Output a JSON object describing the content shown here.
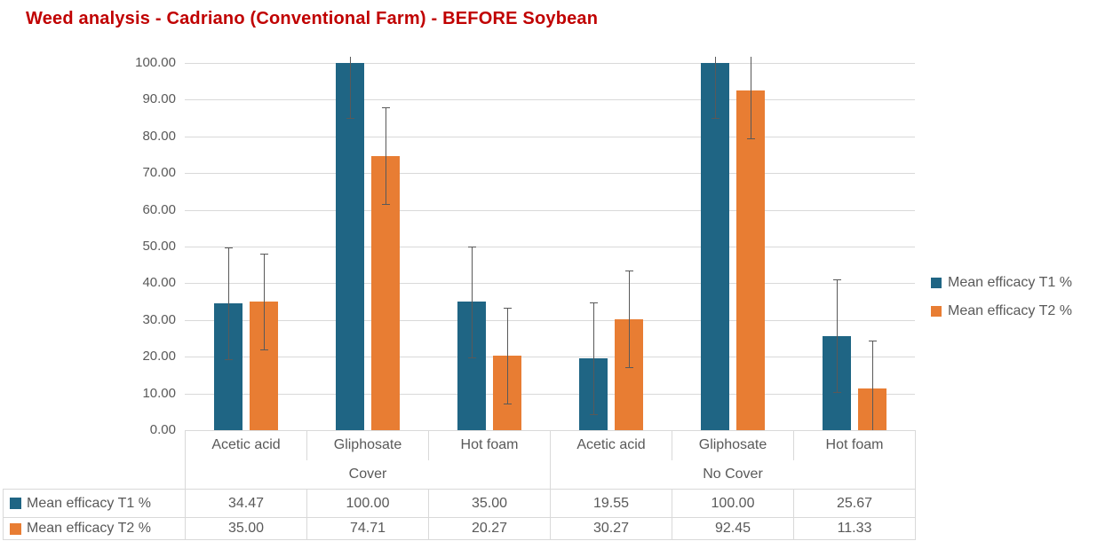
{
  "title": {
    "text": "Weed analysis - Cadriano (Conventional Farm) - BEFORE Soybean",
    "color": "#C00000"
  },
  "chart_data": {
    "type": "bar",
    "title": "Weed analysis - Cadriano (Conventional Farm) - BEFORE Soybean",
    "categories": [
      "Acetic acid",
      "Gliphosate",
      "Hot foam",
      "Acetic acid",
      "Gliphosate",
      "Hot foam"
    ],
    "groups": [
      {
        "label": "Cover",
        "span": 3
      },
      {
        "label": "No Cover",
        "span": 3
      }
    ],
    "series": [
      {
        "name": "Mean efficacy T1 %",
        "color": "#1F6584",
        "values": [
          34.47,
          100.0,
          35.0,
          19.55,
          100.0,
          25.67
        ],
        "errors": [
          15.2,
          15.0,
          15.1,
          15.2,
          15.0,
          15.3
        ]
      },
      {
        "name": "Mean efficacy T2 %",
        "color": "#E87D33",
        "values": [
          35.0,
          74.71,
          20.27,
          30.27,
          92.45,
          11.33
        ],
        "errors": [
          13.1,
          13.2,
          13.0,
          13.2,
          13.1,
          13.0
        ]
      }
    ],
    "ylim": [
      0,
      100
    ],
    "ytick_step": 10,
    "ytick_decimals": 2,
    "grid": true,
    "error_bars": true,
    "legend_position": "right",
    "value_decimals": 2,
    "colors": {
      "grid": "#D9D9D9",
      "axis_text": "#595959",
      "error_bar": "#595959",
      "table_border": "#D9D9D9",
      "table_text": "#595959"
    }
  }
}
